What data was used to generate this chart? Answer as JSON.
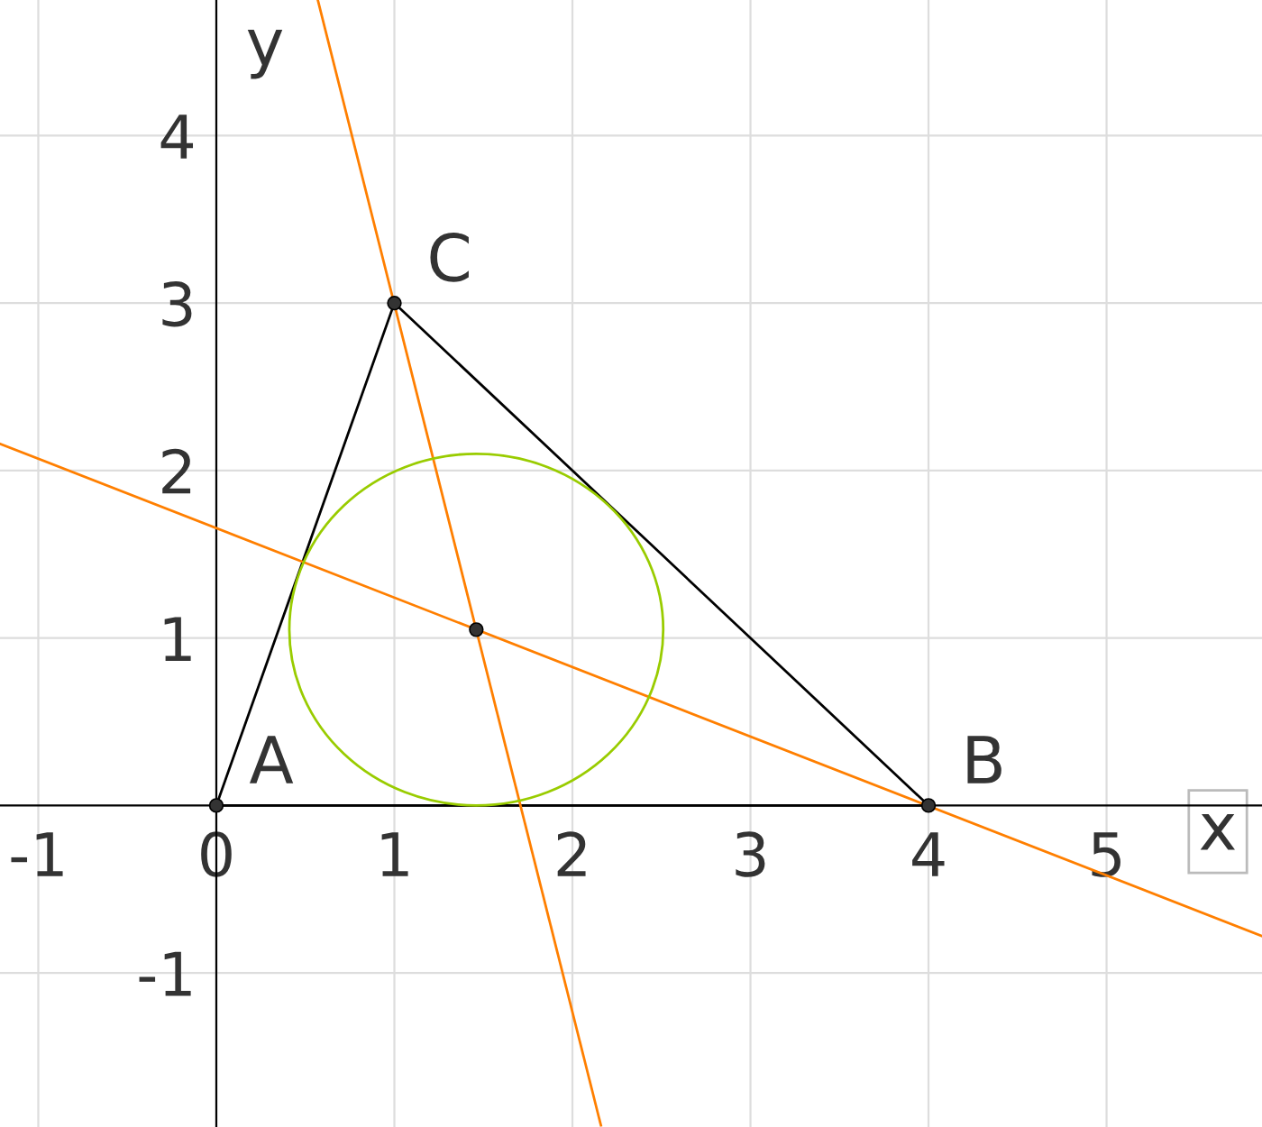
{
  "chart_data": {
    "type": "line",
    "xlabel": "x",
    "ylabel": "y",
    "xlim": [
      -1.215,
      5.873
    ],
    "ylim": [
      -1.92,
      4.81
    ],
    "xticks": [
      -1,
      0,
      1,
      2,
      3,
      4,
      5
    ],
    "yticks": [
      -1,
      1,
      2,
      3,
      4
    ],
    "grid": true,
    "legend": false,
    "series": [
      {
        "color": "#000000",
        "x": [
          0,
          4
        ],
        "values": [
          0,
          0
        ]
      },
      {
        "color": "#000000",
        "x": [
          0,
          1
        ],
        "values": [
          0,
          3
        ]
      },
      {
        "color": "#000000",
        "x": [
          1,
          4
        ],
        "values": [
          3,
          0
        ]
      },
      {
        "color": "#ff7f00",
        "x": [
          -1.215,
          5.873
        ],
        "values": [
          2.16,
          -0.78
        ]
      },
      {
        "color": "#ff7f00",
        "x": [
          0.57,
          2.16
        ],
        "values": [
          4.81,
          -1.91
        ]
      },
      {
        "type": "scatter",
        "color": "#333333",
        "marker": "circle",
        "x": [
          0,
          4,
          1,
          1.46
        ],
        "values": [
          0,
          0,
          3,
          1.05
        ]
      }
    ],
    "annotations": [
      {
        "text": "A",
        "x": 0,
        "y": 0
      },
      {
        "text": "B",
        "x": 4,
        "y": 0
      },
      {
        "text": "C",
        "x": 1,
        "y": 3
      }
    ]
  }
}
